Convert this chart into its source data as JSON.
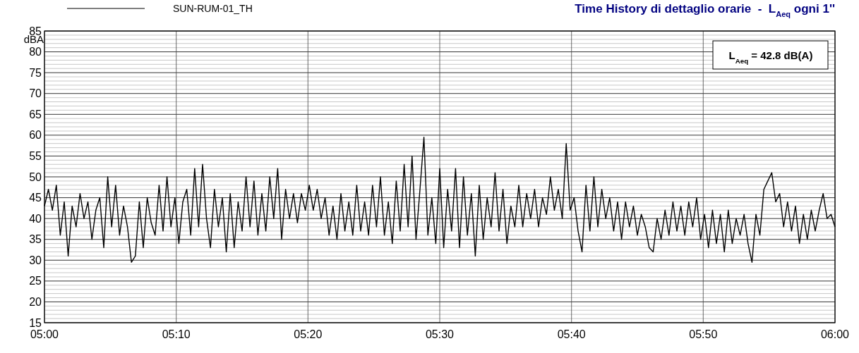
{
  "chart_data": {
    "type": "line",
    "title": "Time History di dettaglio orarie  -  L$_{Aeq}$ ogni 1''",
    "ylabel": "dBA",
    "annotations": [
      "L$_{Aeq}$ = 42.8 dB(A)"
    ],
    "xlim": [
      5,
      6
    ],
    "xticks": [
      {
        "value": 5,
        "label": "05:00"
      },
      {
        "value": 5.1667,
        "label": "05:10"
      },
      {
        "value": 5.3333,
        "label": "05:20"
      },
      {
        "value": 5.5,
        "label": "05:30"
      },
      {
        "value": 5.6667,
        "label": "05:40"
      },
      {
        "value": 5.8333,
        "label": "05:50"
      },
      {
        "value": 6,
        "label": "06:00"
      }
    ],
    "ylim": [
      15,
      85
    ],
    "yticks": [
      15,
      20,
      25,
      30,
      35,
      40,
      45,
      50,
      55,
      60,
      65,
      70,
      75,
      80,
      85
    ],
    "grid": true,
    "legend": "top left",
    "line_style": "solid",
    "marker": "none",
    "x": [
      5,
      5.005,
      5.01,
      5.015,
      5.02,
      5.025,
      5.03,
      5.035,
      5.04,
      5.045,
      5.05,
      5.055,
      5.06,
      5.065,
      5.07,
      5.075,
      5.08,
      5.085,
      5.09,
      5.095,
      5.1,
      5.105,
      5.11,
      5.115,
      5.12,
      5.125,
      5.13,
      5.135,
      5.14,
      5.145,
      5.15,
      5.155,
      5.16,
      5.165,
      5.17,
      5.175,
      5.18,
      5.185,
      5.19,
      5.195,
      5.2,
      5.205,
      5.21,
      5.215,
      5.22,
      5.225,
      5.23,
      5.235,
      5.24,
      5.245,
      5.25,
      5.255,
      5.26,
      5.265,
      5.27,
      5.275,
      5.28,
      5.285,
      5.29,
      5.295,
      5.3,
      5.305,
      5.31,
      5.315,
      5.32,
      5.325,
      5.33,
      5.335,
      5.34,
      5.345,
      5.35,
      5.355,
      5.36,
      5.365,
      5.37,
      5.375,
      5.38,
      5.385,
      5.39,
      5.395,
      5.4,
      5.405,
      5.41,
      5.415,
      5.42,
      5.425,
      5.43,
      5.435,
      5.44,
      5.445,
      5.45,
      5.455,
      5.46,
      5.465,
      5.47,
      5.475,
      5.48,
      5.485,
      5.49,
      5.495,
      5.5,
      5.505,
      5.51,
      5.515,
      5.52,
      5.525,
      5.53,
      5.535,
      5.54,
      5.545,
      5.55,
      5.555,
      5.56,
      5.565,
      5.57,
      5.575,
      5.58,
      5.585,
      5.59,
      5.595,
      5.6,
      5.605,
      5.61,
      5.615,
      5.62,
      5.625,
      5.63,
      5.635,
      5.64,
      5.645,
      5.65,
      5.655,
      5.66,
      5.665,
      5.67,
      5.675,
      5.68,
      5.685,
      5.69,
      5.695,
      5.7,
      5.705,
      5.71,
      5.715,
      5.72,
      5.725,
      5.73,
      5.735,
      5.74,
      5.745,
      5.75,
      5.755,
      5.76,
      5.765,
      5.77,
      5.775,
      5.78,
      5.785,
      5.79,
      5.795,
      5.8,
      5.805,
      5.81,
      5.815,
      5.82,
      5.825,
      5.83,
      5.835,
      5.84,
      5.845,
      5.85,
      5.855,
      5.86,
      5.865,
      5.87,
      5.875,
      5.88,
      5.885,
      5.89,
      5.895,
      5.9,
      5.905,
      5.91,
      5.915,
      5.92,
      5.925,
      5.93,
      5.935,
      5.94,
      5.945,
      5.95,
      5.955,
      5.96,
      5.965,
      5.97,
      5.975,
      5.98,
      5.985,
      5.99,
      5.995,
      6
    ],
    "series": [
      {
        "name": "SUN-RUM-01_TH",
        "color": "#000000",
        "values": [
          43,
          47,
          42,
          48,
          36,
          44,
          31,
          43,
          38,
          46,
          40,
          44,
          35,
          42,
          45,
          33,
          50,
          38,
          48,
          36,
          43,
          38,
          29.5,
          31,
          44,
          33,
          45,
          39,
          36,
          48,
          37,
          50,
          38,
          45,
          34,
          44,
          47,
          36,
          52,
          38,
          53,
          40,
          33,
          47,
          38,
          45,
          32,
          46,
          33,
          44,
          37,
          50,
          38,
          49,
          36,
          46,
          37,
          50,
          40,
          52,
          35,
          47,
          40,
          46,
          39,
          46,
          42,
          48,
          42,
          47,
          40,
          45,
          36,
          43,
          35,
          46,
          37,
          44,
          36,
          48,
          37,
          44,
          36,
          48,
          38,
          50,
          36,
          44,
          34,
          49,
          37,
          53,
          38,
          55,
          35,
          47,
          59.5,
          36,
          45,
          34,
          52,
          33,
          47,
          37,
          52,
          33,
          50,
          36,
          46,
          31,
          48,
          35,
          45,
          38,
          51,
          37,
          47,
          34,
          43,
          38,
          48,
          38,
          46,
          40,
          47,
          38,
          45,
          41,
          50,
          42,
          47,
          40,
          58,
          42,
          45,
          37,
          32,
          48,
          37,
          50,
          38,
          47,
          40,
          45,
          37,
          44,
          35,
          44,
          38,
          43,
          36,
          41,
          38,
          33,
          32,
          40,
          35,
          42,
          36,
          44,
          37,
          43,
          36,
          44,
          38,
          45,
          35,
          41,
          33,
          42,
          34,
          41,
          32,
          42,
          34,
          40,
          36,
          41,
          34,
          29.5,
          41,
          36,
          47,
          49,
          51,
          44,
          46,
          38,
          44,
          37,
          43,
          34,
          41,
          35,
          42,
          37,
          42,
          46,
          40,
          41,
          38
        ]
      }
    ]
  }
}
